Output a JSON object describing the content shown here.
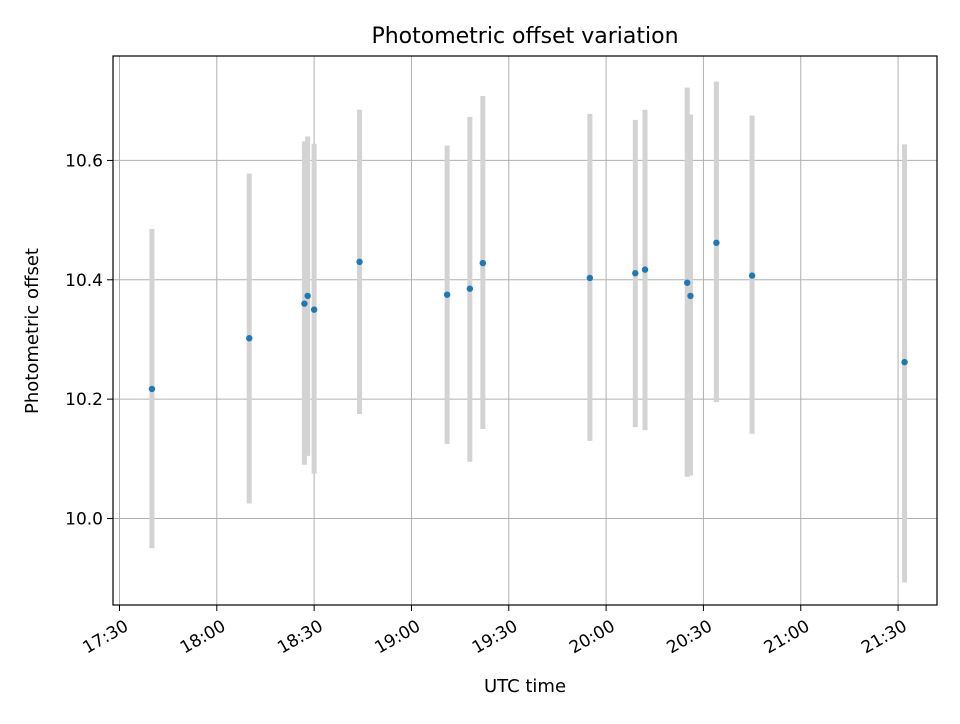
{
  "chart_data": {
    "type": "scatter",
    "title": "Photometric offset variation",
    "xlabel": "UTC time",
    "ylabel": "Photometric offset",
    "xlim": [
      "17:28",
      "21:42"
    ],
    "ylim": [
      9.855,
      10.775
    ],
    "x_ticks": [
      "17:30",
      "18:00",
      "18:30",
      "19:00",
      "19:30",
      "20:00",
      "20:30",
      "21:00",
      "21:30"
    ],
    "y_ticks": [
      10.0,
      10.2,
      10.4,
      10.6
    ],
    "y_tick_labels": [
      "10.0",
      "10.2",
      "10.4",
      "10.6"
    ],
    "grid": true,
    "point_color": "#1f77b4",
    "errorbar_color": "#d3d3d3",
    "points": [
      {
        "x": "17:40",
        "y": 10.217,
        "err_low": 9.95,
        "err_high": 10.485
      },
      {
        "x": "18:10",
        "y": 10.302,
        "err_low": 10.025,
        "err_high": 10.578
      },
      {
        "x": "18:27",
        "y": 10.36,
        "err_low": 10.09,
        "err_high": 10.632
      },
      {
        "x": "18:28",
        "y": 10.373,
        "err_low": 10.105,
        "err_high": 10.64
      },
      {
        "x": "18:30",
        "y": 10.35,
        "err_low": 10.075,
        "err_high": 10.628
      },
      {
        "x": "18:44",
        "y": 10.43,
        "err_low": 10.175,
        "err_high": 10.685
      },
      {
        "x": "19:11",
        "y": 10.375,
        "err_low": 10.125,
        "err_high": 10.625
      },
      {
        "x": "19:18",
        "y": 10.385,
        "err_low": 10.095,
        "err_high": 10.673
      },
      {
        "x": "19:22",
        "y": 10.428,
        "err_low": 10.15,
        "err_high": 10.708
      },
      {
        "x": "19:55",
        "y": 10.403,
        "err_low": 10.13,
        "err_high": 10.678
      },
      {
        "x": "20:09",
        "y": 10.411,
        "err_low": 10.153,
        "err_high": 10.668
      },
      {
        "x": "20:12",
        "y": 10.417,
        "err_low": 10.148,
        "err_high": 10.685
      },
      {
        "x": "20:25",
        "y": 10.395,
        "err_low": 10.07,
        "err_high": 10.722
      },
      {
        "x": "20:26",
        "y": 10.373,
        "err_low": 10.072,
        "err_high": 10.677
      },
      {
        "x": "20:34",
        "y": 10.462,
        "err_low": 10.195,
        "err_high": 10.732
      },
      {
        "x": "20:45",
        "y": 10.407,
        "err_low": 10.142,
        "err_high": 10.675
      },
      {
        "x": "21:32",
        "y": 10.262,
        "err_low": 9.893,
        "err_high": 10.627
      }
    ]
  }
}
